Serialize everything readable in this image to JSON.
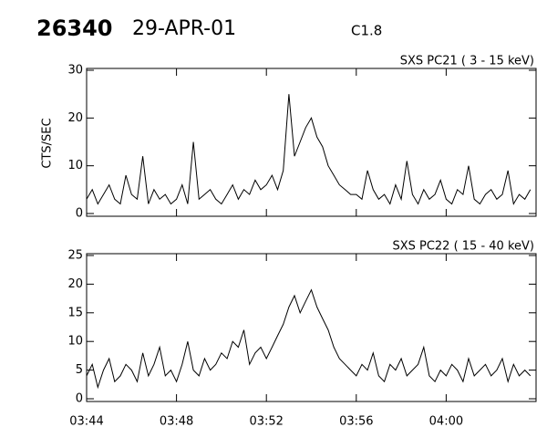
{
  "header": {
    "id": "26340",
    "date": "29-APR-01",
    "class": "C1.8"
  },
  "chart_data": [
    {
      "type": "line",
      "title": "SXS PC21  (  3 - 15 keV)",
      "y_label": "CTS/SEC",
      "color": "#000000",
      "x": [
        224,
        224.25,
        224.5,
        224.75,
        225,
        225.25,
        225.5,
        225.75,
        226,
        226.25,
        226.5,
        226.75,
        227,
        227.25,
        227.5,
        227.75,
        228,
        228.25,
        228.5,
        228.75,
        229,
        229.25,
        229.5,
        229.75,
        230,
        230.25,
        230.5,
        230.75,
        231,
        231.25,
        231.5,
        231.75,
        232,
        232.25,
        232.5,
        232.75,
        233,
        233.25,
        233.5,
        233.75,
        234,
        234.25,
        234.5,
        234.75,
        235,
        235.25,
        235.5,
        235.75,
        236,
        236.25,
        236.5,
        236.75,
        237,
        237.25,
        237.5,
        237.75,
        238,
        238.25,
        238.5,
        238.75,
        239,
        239.25,
        239.5,
        239.75,
        240,
        240.25,
        240.5,
        240.75,
        241,
        241.25,
        241.5,
        241.75,
        242,
        242.25,
        242.5,
        242.75,
        243,
        243.25,
        243.5,
        243.75
      ],
      "values": [
        3,
        5,
        2,
        4,
        6,
        3,
        2,
        8,
        4,
        3,
        12,
        2,
        5,
        3,
        4,
        2,
        3,
        6,
        2,
        15,
        3,
        4,
        5,
        3,
        2,
        4,
        6,
        3,
        5,
        4,
        7,
        5,
        6,
        8,
        5,
        9,
        25,
        12,
        15,
        18,
        20,
        16,
        14,
        10,
        8,
        6,
        5,
        4,
        4,
        3,
        9,
        5,
        3,
        4,
        2,
        6,
        3,
        11,
        4,
        2,
        5,
        3,
        4,
        7,
        3,
        2,
        5,
        4,
        10,
        3,
        2,
        4,
        5,
        3,
        4,
        9,
        2,
        4,
        3,
        5
      ],
      "xlim": [
        224,
        244
      ],
      "ylim": [
        0,
        30
      ],
      "yticks": [
        0,
        10,
        20,
        30
      ]
    },
    {
      "type": "line",
      "title": "SXS PC22  ( 15 - 40 keV)",
      "color": "#000000",
      "x": [
        224,
        224.25,
        224.5,
        224.75,
        225,
        225.25,
        225.5,
        225.75,
        226,
        226.25,
        226.5,
        226.75,
        227,
        227.25,
        227.5,
        227.75,
        228,
        228.25,
        228.5,
        228.75,
        229,
        229.25,
        229.5,
        229.75,
        230,
        230.25,
        230.5,
        230.75,
        231,
        231.25,
        231.5,
        231.75,
        232,
        232.25,
        232.5,
        232.75,
        233,
        233.25,
        233.5,
        233.75,
        234,
        234.25,
        234.5,
        234.75,
        235,
        235.25,
        235.5,
        235.75,
        236,
        236.25,
        236.5,
        236.75,
        237,
        237.25,
        237.5,
        237.75,
        238,
        238.25,
        238.5,
        238.75,
        239,
        239.25,
        239.5,
        239.75,
        240,
        240.25,
        240.5,
        240.75,
        241,
        241.25,
        241.5,
        241.75,
        242,
        242.25,
        242.5,
        242.75,
        243,
        243.25,
        243.5,
        243.75
      ],
      "values": [
        4,
        6,
        2,
        5,
        7,
        3,
        4,
        6,
        5,
        3,
        8,
        4,
        6,
        9,
        4,
        5,
        3,
        6,
        10,
        5,
        4,
        7,
        5,
        6,
        8,
        7,
        10,
        9,
        12,
        6,
        8,
        9,
        7,
        9,
        11,
        13,
        16,
        18,
        15,
        17,
        19,
        16,
        14,
        12,
        9,
        7,
        6,
        5,
        4,
        6,
        5,
        8,
        4,
        3,
        6,
        5,
        7,
        4,
        5,
        6,
        9,
        4,
        3,
        5,
        4,
        6,
        5,
        3,
        7,
        4,
        5,
        6,
        4,
        5,
        7,
        3,
        6,
        4,
        5,
        4
      ],
      "xlim": [
        224,
        244
      ],
      "ylim": [
        0,
        25
      ],
      "yticks": [
        0,
        5,
        10,
        15,
        20,
        25
      ],
      "xticks": [
        {
          "value": 224,
          "label": "03:44"
        },
        {
          "value": 228,
          "label": "03:48"
        },
        {
          "value": 232,
          "label": "03:52"
        },
        {
          "value": 236,
          "label": "03:56"
        },
        {
          "value": 240,
          "label": "04:00"
        }
      ]
    }
  ]
}
